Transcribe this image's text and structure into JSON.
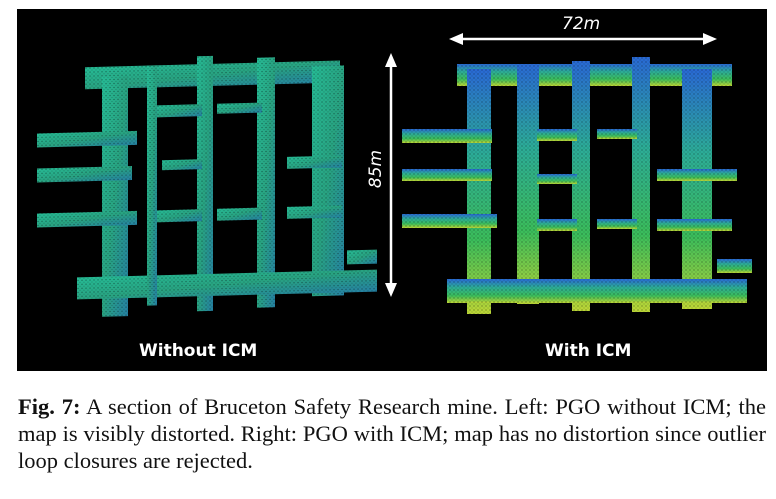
{
  "figure": {
    "left_panel_label": "Without ICM",
    "right_panel_label": "With ICM",
    "width_measure": "72m",
    "height_measure": "85m"
  },
  "caption": {
    "label": "Fig. 7:",
    "text": "A section of Bruceton Safety Research mine. Left: PGO without ICM; the map is visibly distorted. Right: PGO with ICM; map has no distortion since outlier loop closures are rejected."
  },
  "colors": {
    "background": "#000000",
    "map_green": "#2fbf6a",
    "map_cyan": "#2fa6b8",
    "map_yellowgreen": "#b8d83a"
  }
}
